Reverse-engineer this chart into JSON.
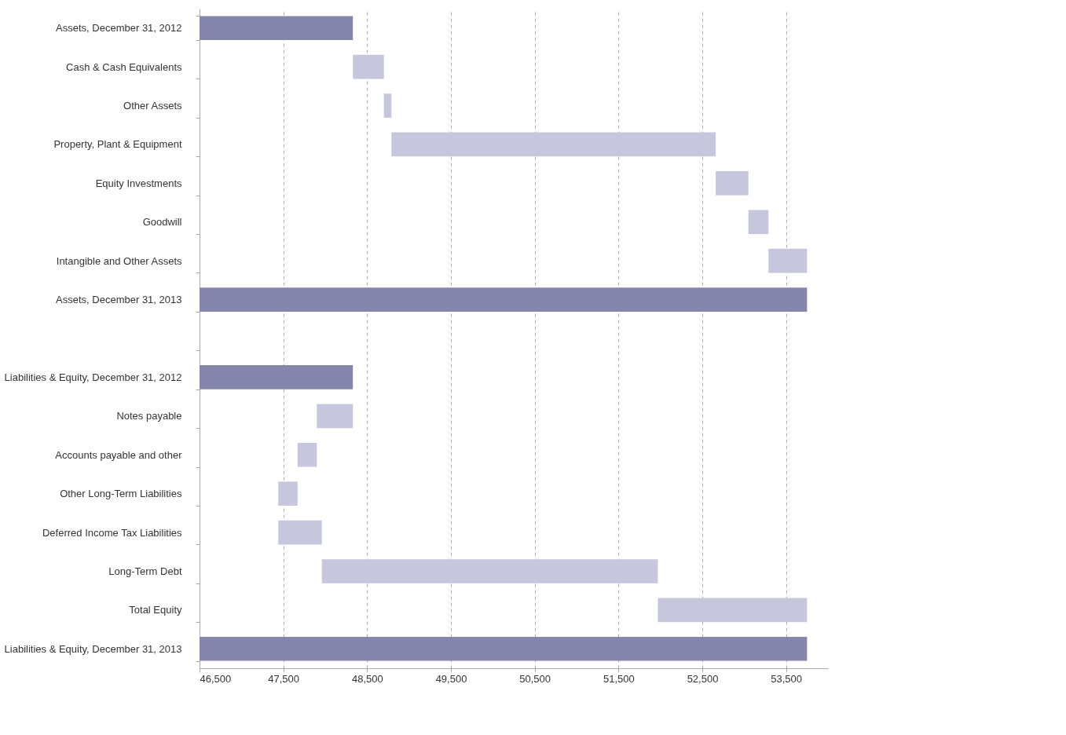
{
  "chart_data": {
    "type": "bar",
    "orientation": "horizontal",
    "categories": [
      "Assets,  December 31, 2012",
      "Cash & Cash Equivalents",
      "Other Assets",
      "Property, Plant & Equipment",
      "Equity Investments",
      "Goodwill",
      "Intangible and Other Assets",
      "Assets,  December 31, 2013",
      null,
      "Liabilities & Equity, December 31, 2012",
      "Notes payable",
      "Accounts payable and other",
      "Other Long-Term Liabilities",
      "Deferred Income Tax Liabilities",
      "Long-Term Debt",
      "Total Equity",
      "Liabilities & Equity, December 31, 2013"
    ],
    "values": [
      48330,
      370,
      90,
      3870,
      390,
      240,
      460,
      53750,
      null,
      48330,
      -430,
      -230,
      -230,
      520,
      4010,
      1780,
      53750
    ],
    "base": [
      null,
      48330,
      48700,
      48790,
      52660,
      53050,
      53290,
      null,
      null,
      null,
      48330,
      47900,
      47670,
      47440,
      47960,
      51970,
      null
    ],
    "colors": [
      "#8486ab",
      "#c6c7dc",
      "#c6c7dc",
      "#c6c7dc",
      "#c6c7dc",
      "#c6c7dc",
      "#c6c7dc",
      "#8486ab",
      null,
      "#8486ab",
      "#c6c7dc",
      "#c6c7dc",
      "#c6c7dc",
      "#c6c7dc",
      "#c6c7dc",
      "#c6c7dc",
      "#8486ab"
    ],
    "xlim": [
      46500,
      54000
    ],
    "xticks": [
      {
        "value": 46500,
        "label": "46,500"
      },
      {
        "value": 47500,
        "label": "47,500"
      },
      {
        "value": 48500,
        "label": "48,500"
      },
      {
        "value": 49500,
        "label": "49,500"
      },
      {
        "value": 50500,
        "label": "50,500"
      },
      {
        "value": 51500,
        "label": "51,500"
      },
      {
        "value": 52500,
        "label": "52,500"
      },
      {
        "value": 53500,
        "label": "53,500"
      }
    ],
    "grid": "x"
  }
}
